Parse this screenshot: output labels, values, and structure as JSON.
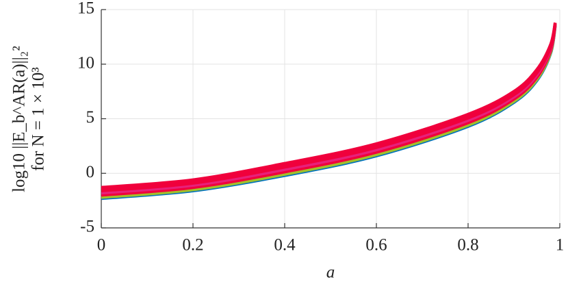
{
  "chart_data": {
    "type": "line",
    "ylabel": [
      "log10 ||E_b^AR(a)||₂²",
      "for N = 1 × 10³"
    ],
    "xlabel": "a",
    "x": [
      0,
      0.2,
      0.4,
      0.6,
      0.8,
      0.9,
      0.95,
      0.98,
      0.99
    ],
    "series": [
      {
        "color": "#0072bd",
        "values": [
          -2.3,
          -1.6,
          -0.2,
          1.6,
          4.3,
          6.5,
          8.5,
          11.0,
          13.5
        ]
      },
      {
        "color": "#a2c02a",
        "values": [
          -2.2,
          -1.5,
          -0.09,
          1.71,
          4.41,
          6.6,
          8.6,
          11.08,
          13.53
        ]
      },
      {
        "color": "#f0003c",
        "values": [
          -2.0,
          -1.3,
          0.13,
          1.93,
          4.63,
          6.8,
          8.8,
          11.24,
          13.59
        ]
      },
      {
        "color": "#e8207a",
        "values": [
          -1.8,
          -1.1,
          0.35,
          2.15,
          4.85,
          7.0,
          9.0,
          11.4,
          13.65
        ]
      },
      {
        "color": "#f0003c",
        "values": [
          -1.6,
          -0.9,
          0.57,
          2.37,
          5.07,
          7.2,
          9.2,
          11.56,
          13.71
        ]
      },
      {
        "color": "#f0003c",
        "values": [
          -1.45,
          -0.75,
          0.735,
          2.535,
          5.235,
          7.35,
          9.35,
          11.68,
          13.755
        ]
      },
      {
        "color": "#f0003c",
        "values": [
          -1.3,
          -0.6,
          0.9,
          2.7,
          5.4,
          7.5,
          9.5,
          11.8,
          13.8
        ]
      }
    ],
    "xlim": [
      0,
      1
    ],
    "xticks": [
      0,
      0.2,
      0.4,
      0.6,
      0.8,
      1
    ],
    "ylim": [
      -5,
      15
    ],
    "yticks": [
      -5,
      0,
      5,
      10,
      15
    ],
    "grid": true
  }
}
